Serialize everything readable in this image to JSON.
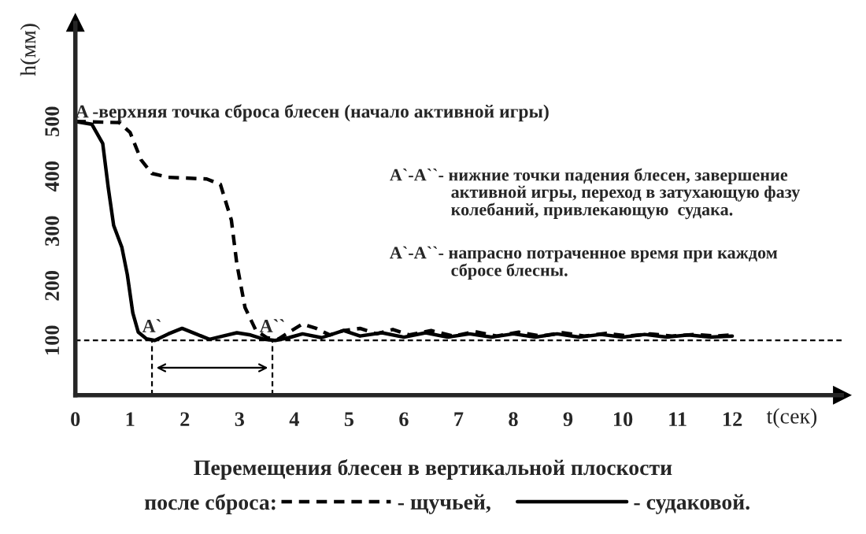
{
  "chart_data": {
    "type": "line",
    "title": "Перемещения блесен в вертикальной плоскости",
    "legend_title": "после сброса:",
    "ylabel": "h(мм)",
    "xlabel": "t(сек)",
    "xlim": [
      0,
      14
    ],
    "xticks": [
      0,
      1,
      2,
      3,
      4,
      5,
      6,
      7,
      8,
      9,
      10,
      11,
      12
    ],
    "ylim": [
      0,
      680
    ],
    "yticks": [
      100,
      200,
      300,
      400,
      500
    ],
    "grid": false,
    "legend": "bottom",
    "series": [
      {
        "name": "- щучьей,",
        "color": "#000000",
        "line_style": "dashed",
        "x": [
          0,
          0.8,
          1.0,
          1.2,
          1.4,
          1.7,
          2.4,
          2.65,
          2.85,
          2.95,
          3.1,
          3.3,
          3.5,
          3.7,
          3.95,
          4.15,
          4.4,
          4.65,
          4.9,
          5.2,
          5.5,
          5.8,
          6.1,
          6.5,
          6.9,
          7.3,
          7.7,
          8.1,
          8.5,
          8.9,
          9.3,
          9.7,
          10.1,
          10.5,
          10.9,
          11.3,
          11.7,
          12.0
        ],
        "values": [
          500,
          498,
          480,
          430,
          405,
          398,
          395,
          385,
          320,
          240,
          160,
          118,
          105,
          102,
          118,
          130,
          122,
          110,
          118,
          122,
          112,
          120,
          110,
          118,
          108,
          116,
          108,
          115,
          108,
          114,
          108,
          113,
          108,
          112,
          108,
          111,
          108,
          110
        ]
      },
      {
        "name": "- судаковой.",
        "color": "#000000",
        "line_style": "solid",
        "x": [
          0,
          0.3,
          0.5,
          0.6,
          0.7,
          0.85,
          0.95,
          1.05,
          1.15,
          1.3,
          1.45,
          1.7,
          1.95,
          2.2,
          2.45,
          2.7,
          2.95,
          3.2,
          3.45,
          3.65,
          3.9,
          4.15,
          4.5,
          4.9,
          5.2,
          5.6,
          6.0,
          6.4,
          6.8,
          7.2,
          7.6,
          8.0,
          8.4,
          8.8,
          9.2,
          9.6,
          10.0,
          10.4,
          10.8,
          11.2,
          11.6,
          12.0
        ],
        "values": [
          500,
          495,
          460,
          380,
          310,
          270,
          220,
          150,
          115,
          103,
          100,
          112,
          122,
          112,
          102,
          108,
          114,
          110,
          102,
          100,
          105,
          112,
          105,
          118,
          108,
          114,
          106,
          114,
          106,
          112,
          106,
          112,
          106,
          112,
          106,
          111,
          106,
          111,
          106,
          110,
          106,
          108
        ]
      }
    ],
    "ref_lines": [
      {
        "axis": "y",
        "value": 100,
        "line_style": "dashed"
      },
      {
        "axis": "x",
        "value": 1.4,
        "line_style": "dashed"
      },
      {
        "axis": "x",
        "value": 3.6,
        "line_style": "dashed"
      }
    ],
    "annotations": [
      {
        "text": "A -верхняя точка сброса блесен (начало активной игры)",
        "x": 0,
        "y": 500
      },
      {
        "text": "A`",
        "x": 1.4,
        "y": 100
      },
      {
        "text": "A``",
        "x": 3.6,
        "y": 100
      },
      "A`-A``- нижние точки падения блесен, завершение\n              активной игры, переход в затухающую фазу\n              колебаний, привлекающую  судака.",
      "A`-A``- напрасно потраченное время при каждом\n              сбросе блесны."
    ]
  }
}
